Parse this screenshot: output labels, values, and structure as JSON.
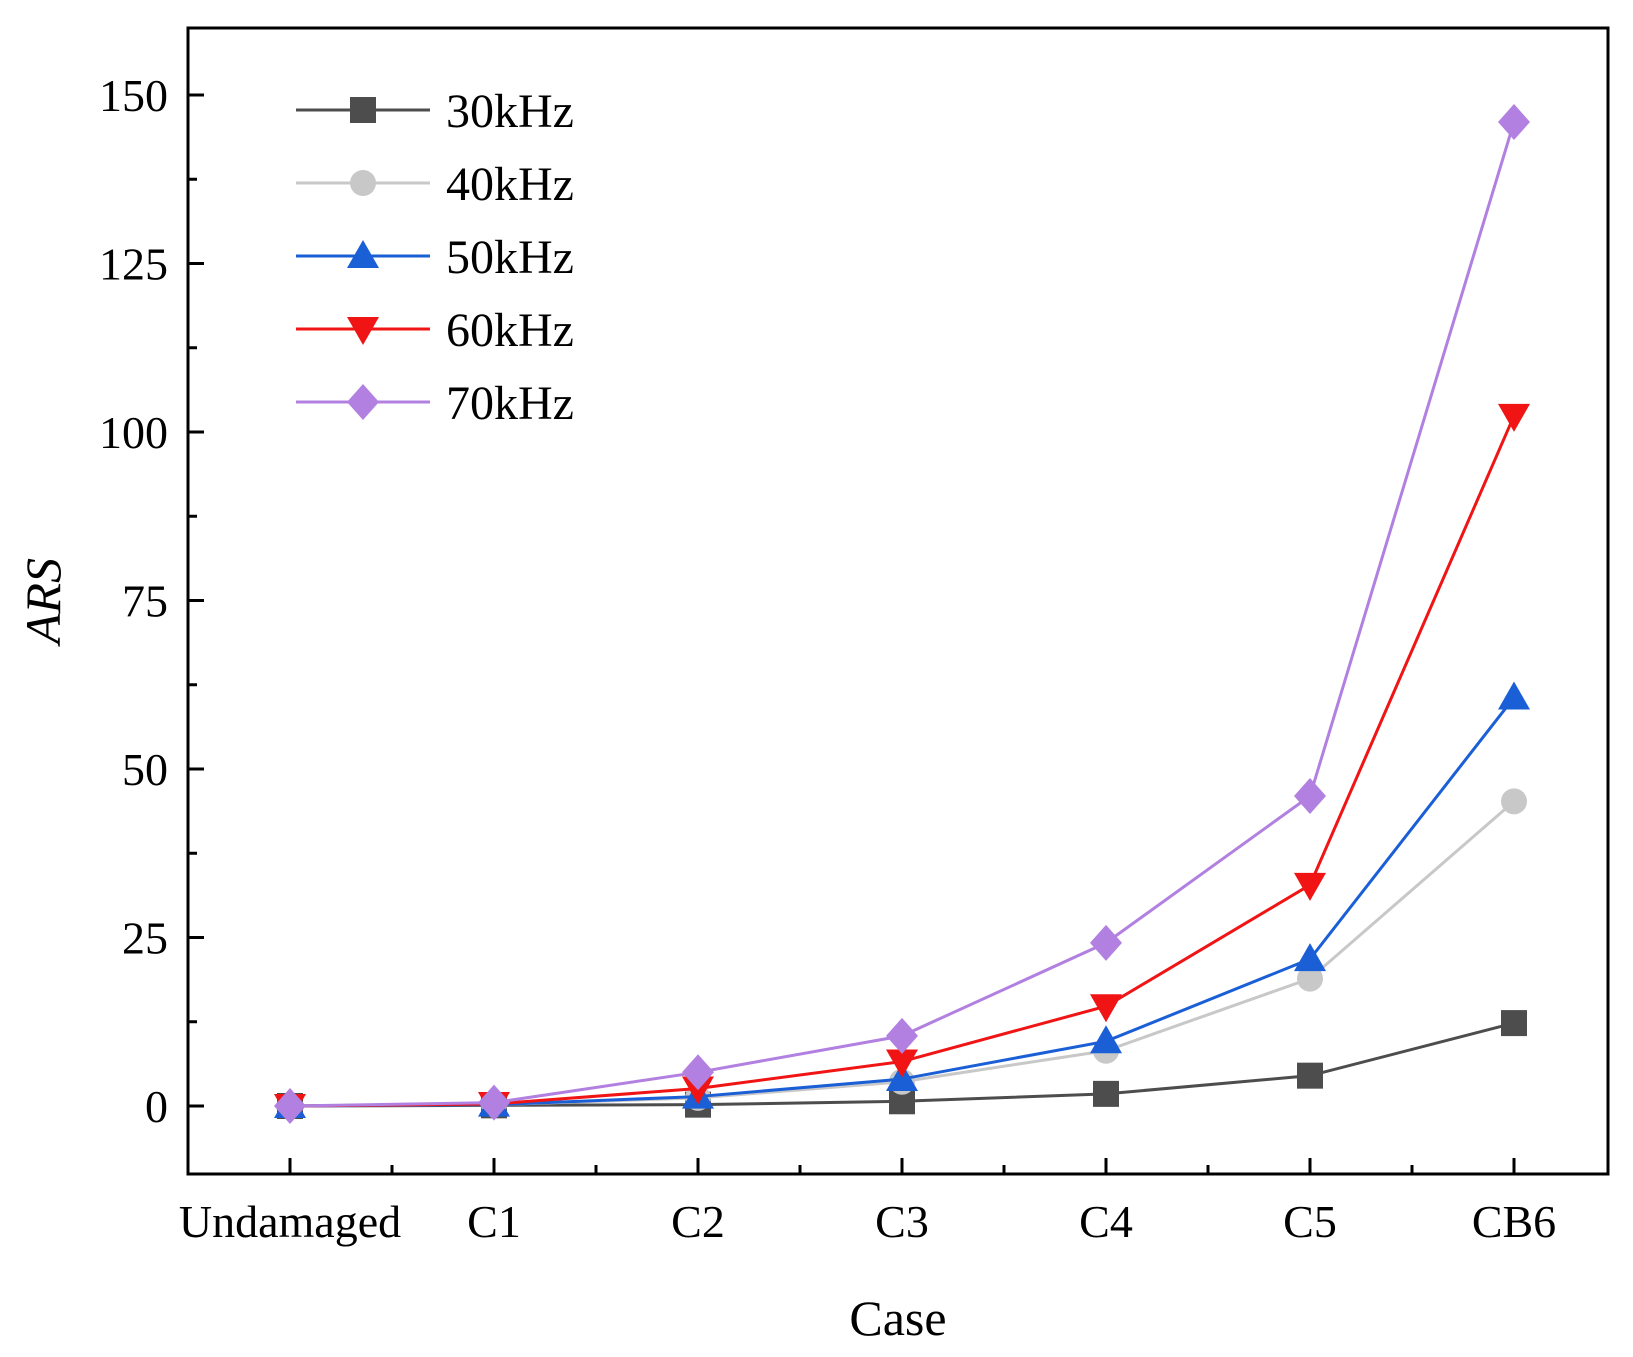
{
  "chart_data": {
    "type": "line",
    "title": "",
    "xlabel": "Case",
    "ylabel": "ARS",
    "categories": [
      "Undamaged",
      "C1",
      "C2",
      "C3",
      "C4",
      "C5",
      "CB6"
    ],
    "ylim": [
      -10,
      160
    ],
    "yticks": [
      0,
      25,
      50,
      75,
      100,
      125,
      150
    ],
    "grid": false,
    "legend_position": "top-left",
    "series": [
      {
        "name": "30kHz",
        "color": "#4d4d4d",
        "marker": "square",
        "values": [
          0,
          0.1,
          0.2,
          0.7,
          1.8,
          4.5,
          12.3
        ]
      },
      {
        "name": "40kHz",
        "color": "#c8c8c8",
        "marker": "circle",
        "values": [
          0,
          0.2,
          1.2,
          3.6,
          8.2,
          18.9,
          45.2
        ]
      },
      {
        "name": "50kHz",
        "color": "#1a5fd6",
        "marker": "triangle-up",
        "values": [
          0,
          0.2,
          1.4,
          4.0,
          9.6,
          21.8,
          60.6
        ]
      },
      {
        "name": "60kHz",
        "color": "#f01414",
        "marker": "triangle-down",
        "values": [
          0,
          0.3,
          2.6,
          6.6,
          14.8,
          32.8,
          102.4
        ]
      },
      {
        "name": "70kHz",
        "color": "#b180e0",
        "marker": "diamond",
        "values": [
          0,
          0.5,
          5.0,
          10.4,
          24.2,
          46.0,
          146.0
        ]
      }
    ]
  }
}
